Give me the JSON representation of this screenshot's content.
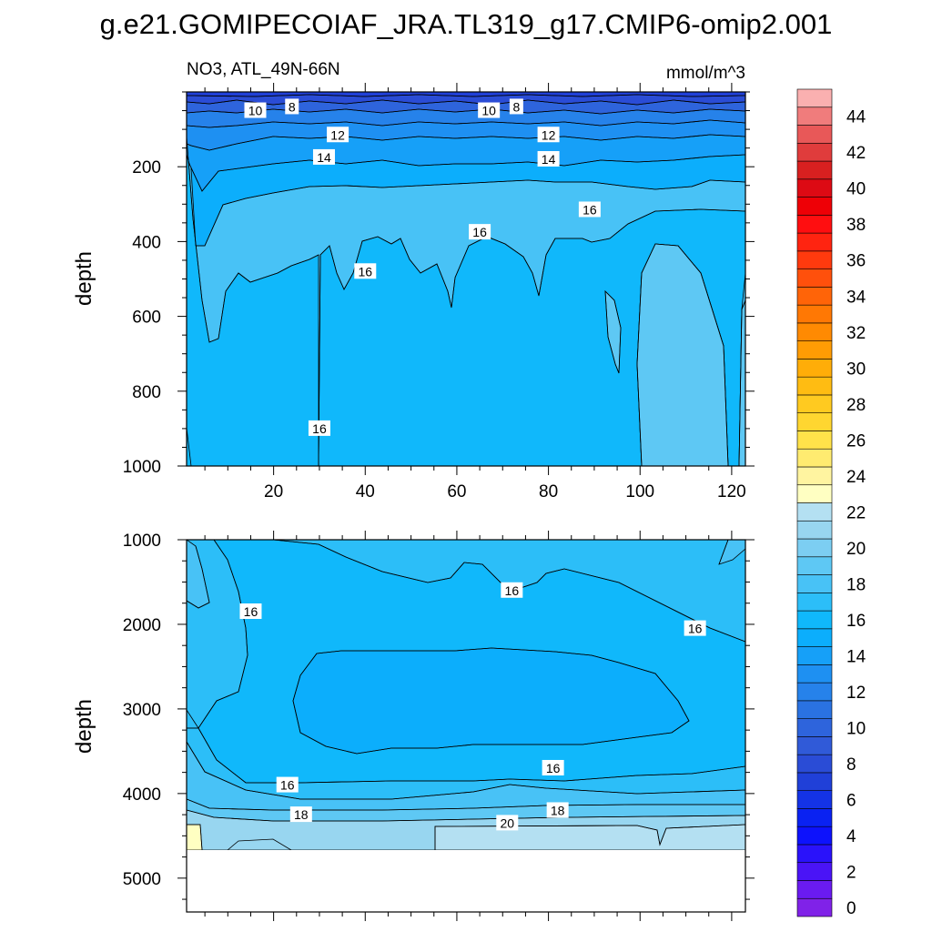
{
  "chart_data": {
    "type": "contour",
    "title": "g.e21.GOMIPECOIAF_JRA.TL319_g17.CMIP6-omip2.001",
    "variable_label": "NO3, ATL_49N-66N",
    "units": "mmol/m^3",
    "panels": [
      {
        "name": "upper",
        "ylabel": "depth",
        "ylim": [
          0,
          1000
        ],
        "xlim": [
          1,
          123
        ],
        "x_ticks": [
          20,
          40,
          60,
          80,
          100,
          120
        ],
        "y_ticks": [
          200,
          400,
          600,
          800,
          1000
        ],
        "contour_labels": [
          {
            "text": "10",
            "x": 16,
            "depth": 50
          },
          {
            "text": "8",
            "x": 24,
            "depth": 40
          },
          {
            "text": "12",
            "x": 34,
            "depth": 115
          },
          {
            "text": "14",
            "x": 31,
            "depth": 175
          },
          {
            "text": "10",
            "x": 67,
            "depth": 50
          },
          {
            "text": "8",
            "x": 73,
            "depth": 40
          },
          {
            "text": "12",
            "x": 80,
            "depth": 115
          },
          {
            "text": "14",
            "x": 80,
            "depth": 180
          },
          {
            "text": "16",
            "x": 89,
            "depth": 315
          },
          {
            "text": "16",
            "x": 65,
            "depth": 375
          },
          {
            "text": "16",
            "x": 40,
            "depth": 480
          },
          {
            "text": "16",
            "x": 30,
            "depth": 900
          }
        ]
      },
      {
        "name": "lower",
        "ylabel": "depth",
        "ylim": [
          1000,
          5400
        ],
        "xlim": [
          1,
          123
        ],
        "y_ticks": [
          1000,
          2000,
          3000,
          4000,
          5000
        ],
        "contour_labels": [
          {
            "text": "16",
            "x": 15,
            "depth": 1850
          },
          {
            "text": "16",
            "x": 72,
            "depth": 1600
          },
          {
            "text": "16",
            "x": 112,
            "depth": 2050
          },
          {
            "text": "16",
            "x": 23,
            "depth": 3900
          },
          {
            "text": "16",
            "x": 81,
            "depth": 3700
          },
          {
            "text": "18",
            "x": 26,
            "depth": 4250
          },
          {
            "text": "18",
            "x": 82,
            "depth": 4200
          },
          {
            "text": "20",
            "x": 71,
            "depth": 4350
          }
        ]
      }
    ],
    "colorbar": {
      "tick_labels": [
        "0",
        "2",
        "4",
        "6",
        "8",
        "10",
        "12",
        "14",
        "16",
        "18",
        "20",
        "22",
        "24",
        "26",
        "28",
        "30",
        "32",
        "34",
        "36",
        "38",
        "40",
        "42",
        "44"
      ],
      "levels": [
        0,
        1,
        2,
        3,
        4,
        5,
        6,
        7,
        8,
        9,
        10,
        11,
        12,
        13,
        14,
        15,
        16,
        17,
        18,
        19,
        20,
        21,
        22,
        23,
        24,
        25,
        26,
        27,
        28,
        29,
        30,
        31,
        32,
        33,
        34,
        35,
        36,
        37,
        38,
        39,
        40,
        41,
        42,
        43,
        44,
        45
      ],
      "colors": [
        "#8022e8",
        "#6a1bf0",
        "#4a14f6",
        "#2a12fa",
        "#0d12fc",
        "#0a22f2",
        "#1433e6",
        "#2040d8",
        "#2a4cd6",
        "#305ad8",
        "#2e64dc",
        "#2a72e2",
        "#2682ea",
        "#1e90f2",
        "#16a0f8",
        "#0caefc",
        "#10b8fb",
        "#2cbef8",
        "#48c2f6",
        "#5ec8f4",
        "#7ccef2",
        "#98d6f0",
        "#b4e0f2",
        "#ffffc2",
        "#fff4a0",
        "#ffeb70",
        "#ffe24a",
        "#ffd630",
        "#ffca20",
        "#ffbc12",
        "#ffad08",
        "#ff9c04",
        "#ff8a02",
        "#ff7804",
        "#ff6408",
        "#ff500c",
        "#ff3a0e",
        "#ff2410",
        "#ff0e10",
        "#ee0006",
        "#dd0a14",
        "#d82020",
        "#e03c3c",
        "#e85858",
        "#f07c7c",
        "#fab0b0"
      ]
    }
  }
}
